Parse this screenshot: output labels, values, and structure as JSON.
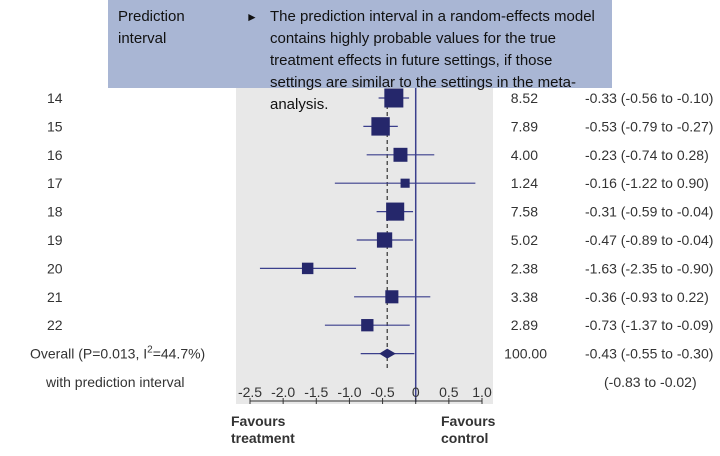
{
  "callout": {
    "term": "Prediction\ninterval",
    "arrow": "►",
    "text": "The prediction interval in a random-effects model contains highly probable values for the true treatment effects in future settings, if those settings are similar to the settings in the meta-analysis."
  },
  "colors": {
    "callout_bg": "#a9b6d4",
    "plot_bg": "#e8e8e8",
    "marker": "#25276b",
    "line": "#3b3f8c"
  },
  "chart_data": {
    "type": "forest",
    "xlim": [
      -2.5,
      1.0
    ],
    "ticks": [
      -2.5,
      -2.0,
      -1.5,
      -1.0,
      -0.5,
      0,
      0.5,
      1.0
    ],
    "tick_labels": [
      "-2.5",
      "-2.0",
      "-1.5",
      "-1.0",
      "-0.5",
      "0",
      "0.5",
      "1.0"
    ],
    "null_line": 0,
    "overall_line": -0.43,
    "studies": [
      {
        "label": "14",
        "estimate": -0.33,
        "lower": -0.56,
        "upper": -0.1,
        "weight": 8.52,
        "weight_text": "8.52",
        "ci_text": "-0.33 (-0.56 to -0.10)"
      },
      {
        "label": "15",
        "estimate": -0.53,
        "lower": -0.79,
        "upper": -0.27,
        "weight": 7.89,
        "weight_text": "7.89",
        "ci_text": "-0.53 (-0.79 to -0.27)"
      },
      {
        "label": "16",
        "estimate": -0.23,
        "lower": -0.74,
        "upper": 0.28,
        "weight": 4.0,
        "weight_text": "4.00",
        "ci_text": "-0.23 (-0.74 to 0.28)"
      },
      {
        "label": "17",
        "estimate": -0.16,
        "lower": -1.22,
        "upper": 0.9,
        "weight": 1.24,
        "weight_text": "1.24",
        "ci_text": "-0.16 (-1.22 to 0.90)"
      },
      {
        "label": "18",
        "estimate": -0.31,
        "lower": -0.59,
        "upper": -0.04,
        "weight": 7.58,
        "weight_text": "7.58",
        "ci_text": "-0.31 (-0.59 to -0.04)"
      },
      {
        "label": "19",
        "estimate": -0.47,
        "lower": -0.89,
        "upper": -0.04,
        "weight": 5.02,
        "weight_text": "5.02",
        "ci_text": "-0.47 (-0.89 to -0.04)"
      },
      {
        "label": "20",
        "estimate": -1.63,
        "lower": -2.35,
        "upper": -0.9,
        "weight": 2.38,
        "weight_text": "2.38",
        "ci_text": "-1.63 (-2.35 to -0.90)"
      },
      {
        "label": "21",
        "estimate": -0.36,
        "lower": -0.93,
        "upper": 0.22,
        "weight": 3.38,
        "weight_text": "3.38",
        "ci_text": "-0.36 (-0.93 to 0.22)"
      },
      {
        "label": "22",
        "estimate": -0.73,
        "lower": -1.37,
        "upper": -0.09,
        "weight": 2.89,
        "weight_text": "2.89",
        "ci_text": "-0.73 (-1.37 to -0.09)"
      }
    ],
    "overall": {
      "label": "Overall (P=0.013, I",
      "label_sup": "2",
      "label_tail": "=44.7%)",
      "estimate": -0.43,
      "lower": -0.55,
      "upper": -0.3,
      "prediction_lower": -0.83,
      "prediction_upper": -0.02,
      "weight_text": "100.00",
      "ci_text": "-0.43 (-0.55 to -0.30)"
    },
    "prediction": {
      "label": "with prediction interval",
      "ci_text": "(-0.83 to -0.02)"
    },
    "favours_left": "Favours\ntreatment",
    "favours_right": "Favours\ncontrol"
  }
}
